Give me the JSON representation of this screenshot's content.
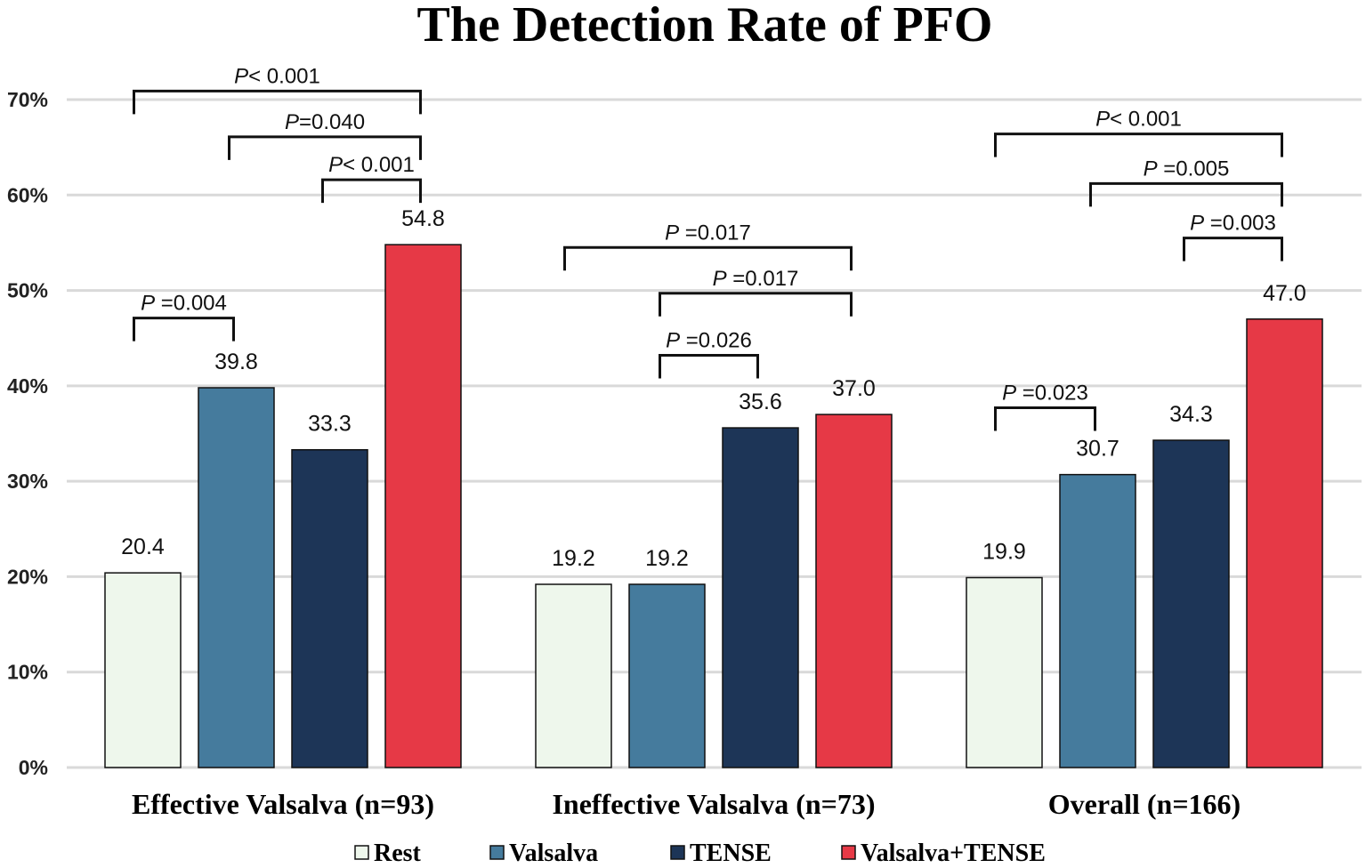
{
  "chart_data": {
    "type": "bar",
    "title": "The Detection Rate of PFO",
    "xlabel": "",
    "ylabel": "",
    "ylim": [
      0,
      70
    ],
    "yticks": [
      "0%",
      "10%",
      "20%",
      "30%",
      "40%",
      "50%",
      "60%",
      "70%"
    ],
    "ytick_values": [
      0,
      10,
      20,
      30,
      40,
      50,
      60,
      70
    ],
    "grid": true,
    "legend_position": "bottom",
    "categories": [
      "Effective Valsalva  (n=93)",
      "Ineffective Valsalva (n=73)",
      "Overall (n=166)"
    ],
    "series": [
      {
        "name": "Rest",
        "color": "#eef7ec",
        "values": [
          20.4,
          19.2,
          19.9
        ],
        "labels": [
          "20.4",
          "19.2",
          "19.9"
        ]
      },
      {
        "name": "Valsalva",
        "color": "#457b9d",
        "values": [
          39.8,
          19.2,
          30.7
        ],
        "labels": [
          "39.8",
          "19.2",
          "30.7"
        ]
      },
      {
        "name": "TENSE",
        "color": "#1d3557",
        "values": [
          33.3,
          35.6,
          34.3
        ],
        "labels": [
          "33.3",
          "35.6",
          "34.3"
        ]
      },
      {
        "name": "Valsalva+TENSE",
        "color": "#e63946",
        "values": [
          54.8,
          37.0,
          47.0
        ],
        "labels": [
          "54.8",
          "37.0",
          "47.0"
        ]
      }
    ],
    "annotations": [
      {
        "group": 0,
        "from": 0,
        "to": 3,
        "level": 70.9,
        "p": "P",
        "text": "< 0.001"
      },
      {
        "group": 0,
        "from": 1,
        "to": 3,
        "level": 66.1,
        "p": "P",
        "text": "=0.040"
      },
      {
        "group": 0,
        "from": 2,
        "to": 3,
        "level": 61.6,
        "p": "P",
        "text": "< 0.001"
      },
      {
        "group": 0,
        "from": 0,
        "to": 1,
        "level": 47.1,
        "p": "P",
        "text": " =0.004"
      },
      {
        "group": 1,
        "from": 0,
        "to": 3,
        "level": 54.5,
        "p": "P",
        "text": " =0.017"
      },
      {
        "group": 1,
        "from": 1,
        "to": 3,
        "level": 49.7,
        "p": "P",
        "text": " =0.017"
      },
      {
        "group": 1,
        "from": 1,
        "to": 2,
        "level": 43.2,
        "p": "P",
        "text": " =0.026"
      },
      {
        "group": 2,
        "from": 0,
        "to": 3,
        "level": 66.4,
        "p": "P",
        "text": "< 0.001"
      },
      {
        "group": 2,
        "from": 1,
        "to": 3,
        "level": 61.2,
        "p": "P",
        "text": " =0.005"
      },
      {
        "group": 2,
        "from": 2,
        "to": 3,
        "level": 55.5,
        "p": "P",
        "text": " =0.003"
      },
      {
        "group": 2,
        "from": 0,
        "to": 1,
        "level": 37.7,
        "p": "P",
        "text": " =0.023"
      }
    ]
  }
}
